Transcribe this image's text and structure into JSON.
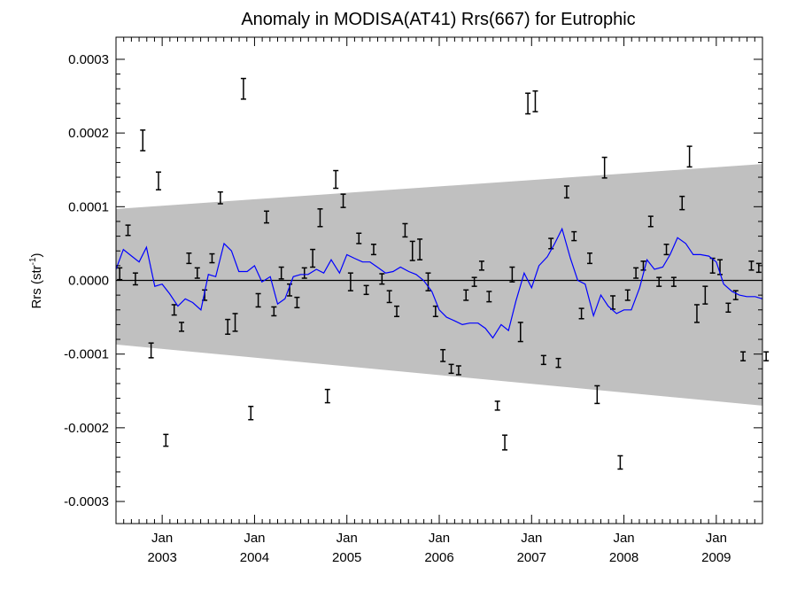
{
  "chart_data": {
    "type": "line",
    "title": "Anomaly in MODISA(AT41) Rrs(667) for Eutrophic",
    "ylabel_main": "Rrs (str",
    "ylabel_sup": "-1",
    "ylabel_close": ")",
    "xlabel": "",
    "xlim": [
      2002.5,
      2009.5
    ],
    "ylim": [
      -0.00033,
      0.00033
    ],
    "y_ticks": [
      -0.0003,
      -0.0002,
      -0.0001,
      0.0,
      0.0001,
      0.0002,
      0.0003
    ],
    "y_tick_labels": [
      "-0.0003",
      "-0.0002",
      "-0.0001",
      "0.0000",
      "0.0001",
      "0.0002",
      "0.0003"
    ],
    "x_ticks": [
      {
        "value": 2003.0,
        "month": "Jan",
        "year": "2003"
      },
      {
        "value": 2004.0,
        "month": "Jan",
        "year": "2004"
      },
      {
        "value": 2005.0,
        "month": "Jan",
        "year": "2005"
      },
      {
        "value": 2006.0,
        "month": "Jan",
        "year": "2006"
      },
      {
        "value": 2007.0,
        "month": "Jan",
        "year": "2007"
      },
      {
        "value": 2008.0,
        "month": "Jan",
        "year": "2008"
      },
      {
        "value": 2009.0,
        "month": "Jan",
        "year": "2009"
      }
    ],
    "zero_line": true,
    "colors": {
      "band": "#c0c0c0",
      "line": "#0000ff",
      "points": "#000000",
      "axis": "#000000"
    },
    "band": {
      "start": {
        "x": 2002.5,
        "upper": 9.7e-05,
        "lower": -8.7e-05
      },
      "end": {
        "x": 2009.5,
        "upper": 0.000158,
        "lower": -0.00017
      }
    },
    "series": [
      {
        "kind": "errorbar",
        "x": [
          2002.54,
          2002.63,
          2002.71,
          2002.79,
          2002.88,
          2002.96,
          2003.04,
          2003.13,
          2003.21,
          2003.29,
          2003.38,
          2003.46,
          2003.54,
          2003.63,
          2003.71,
          2003.79,
          2003.88,
          2003.96,
          2004.04,
          2004.13,
          2004.21,
          2004.29,
          2004.38,
          2004.46,
          2004.54,
          2004.63,
          2004.71,
          2004.79,
          2004.88,
          2004.96,
          2005.04,
          2005.13,
          2005.21,
          2005.29,
          2005.38,
          2005.46,
          2005.54,
          2005.63,
          2005.71,
          2005.79,
          2005.88,
          2005.96,
          2006.04,
          2006.13,
          2006.21,
          2006.29,
          2006.38,
          2006.46,
          2006.54,
          2006.63,
          2006.71,
          2006.79,
          2006.88,
          2006.96,
          2007.04,
          2007.13,
          2007.21,
          2007.29,
          2007.38,
          2007.46,
          2007.54,
          2007.63,
          2007.71,
          2007.79,
          2007.88,
          2007.96,
          2008.04,
          2008.13,
          2008.21,
          2008.29,
          2008.38,
          2008.46,
          2008.54,
          2008.63,
          2008.71,
          2008.79,
          2008.88,
          2008.96,
          2009.04,
          2009.13,
          2009.21,
          2009.29,
          2009.38,
          2009.46,
          2009.54
        ],
        "y": [
          9e-06,
          6.8e-05,
          2e-06,
          0.00019,
          -9.5e-05,
          0.000135,
          -0.000217,
          -4e-05,
          -6.3e-05,
          3e-05,
          1e-05,
          -2e-05,
          3e-05,
          0.000112,
          -6.3e-05,
          -5.7e-05,
          0.00026,
          -0.00018,
          -2.7e-05,
          8.6e-05,
          -4.2e-05,
          1e-05,
          -1.3e-05,
          -3e-05,
          1e-05,
          3e-05,
          8.5e-05,
          -0.000157,
          0.000137,
          0.000108,
          -2e-06,
          5.7e-05,
          -1.3e-05,
          4.2e-05,
          2e-06,
          -2.2e-05,
          -4.2e-05,
          6.8e-05,
          4e-05,
          4.2e-05,
          -2e-06,
          -4.2e-05,
          -0.000102,
          -0.00012,
          -0.000122,
          -2e-05,
          -2e-06,
          2e-05,
          -2.2e-05,
          -0.00017,
          -0.00022,
          8e-06,
          -7e-05,
          0.00024,
          0.000243,
          -0.000108,
          5e-05,
          -0.000112,
          0.00012,
          6e-05,
          -4.5e-05,
          3e-05,
          -0.000155,
          0.000153,
          -3e-05,
          -0.000247,
          -2e-05,
          1e-05,
          2e-05,
          8e-05,
          -2e-06,
          4.2e-05,
          -2e-06,
          0.000105,
          0.000168,
          -4.5e-05,
          -2e-05,
          2e-05,
          1.8e-05,
          -3.7e-05,
          -2e-05,
          -0.000103,
          2e-05,
          1.7e-05,
          -0.000103
        ],
        "err": [
          8e-06,
          7e-06,
          8e-06,
          1.4e-05,
          1e-05,
          1.2e-05,
          8e-06,
          7e-06,
          6e-06,
          7e-06,
          7e-06,
          7e-06,
          6e-06,
          8e-06,
          1e-05,
          1.2e-05,
          1.4e-05,
          9e-06,
          9e-06,
          8e-06,
          6e-06,
          8e-06,
          8e-06,
          7e-06,
          7e-06,
          1.2e-05,
          1.2e-05,
          9e-06,
          1.2e-05,
          9e-06,
          1.2e-05,
          7e-06,
          6e-06,
          7e-06,
          7e-06,
          8e-06,
          7e-06,
          9e-06,
          1.3e-05,
          1.4e-05,
          1.2e-05,
          7e-06,
          8e-06,
          6e-06,
          6e-06,
          7e-06,
          6e-06,
          6e-06,
          7e-06,
          6e-06,
          1e-05,
          1e-05,
          1.3e-05,
          1.4e-05,
          1.4e-05,
          6e-06,
          7e-06,
          6e-06,
          8e-06,
          6e-06,
          7e-06,
          7e-06,
          1.2e-05,
          1.4e-05,
          9e-06,
          9e-06,
          7e-06,
          7e-06,
          6e-06,
          7e-06,
          6e-06,
          7e-06,
          6e-06,
          9e-06,
          1.4e-05,
          1.2e-05,
          1.2e-05,
          1e-05,
          1e-05,
          6e-06,
          6e-06,
          6e-06,
          6e-06,
          6e-06,
          6e-06
        ]
      },
      {
        "kind": "line",
        "x": [
          2002.5,
          2002.58,
          2002.67,
          2002.75,
          2002.83,
          2002.92,
          2003.0,
          2003.08,
          2003.17,
          2003.25,
          2003.33,
          2003.42,
          2003.5,
          2003.58,
          2003.67,
          2003.75,
          2003.83,
          2003.92,
          2004.0,
          2004.08,
          2004.17,
          2004.25,
          2004.33,
          2004.42,
          2004.5,
          2004.58,
          2004.67,
          2004.75,
          2004.83,
          2004.92,
          2005.0,
          2005.08,
          2005.17,
          2005.25,
          2005.33,
          2005.42,
          2005.5,
          2005.58,
          2005.67,
          2005.75,
          2005.83,
          2005.92,
          2006.0,
          2006.08,
          2006.17,
          2006.25,
          2006.33,
          2006.42,
          2006.5,
          2006.58,
          2006.67,
          2006.75,
          2006.83,
          2006.92,
          2007.0,
          2007.08,
          2007.17,
          2007.25,
          2007.33,
          2007.42,
          2007.5,
          2007.58,
          2007.67,
          2007.75,
          2007.83,
          2007.92,
          2008.0,
          2008.08,
          2008.17,
          2008.25,
          2008.33,
          2008.42,
          2008.5,
          2008.58,
          2008.67,
          2008.75,
          2008.83,
          2008.92,
          2009.0,
          2009.08,
          2009.17,
          2009.25,
          2009.33,
          2009.42,
          2009.5
        ],
        "y": [
          1.5e-05,
          4.2e-05,
          3.3e-05,
          2.5e-05,
          4.5e-05,
          -8e-06,
          -5e-06,
          -1.8e-05,
          -3.5e-05,
          -2.5e-05,
          -3e-05,
          -4e-05,
          8e-06,
          5e-06,
          5e-05,
          4e-05,
          1.2e-05,
          1.2e-05,
          2e-05,
          -2e-06,
          5e-06,
          -3.2e-05,
          -2.5e-05,
          5e-06,
          8e-06,
          8e-06,
          1.5e-05,
          1e-05,
          2.8e-05,
          1e-05,
          3.5e-05,
          3e-05,
          2.5e-05,
          2.5e-05,
          1.8e-05,
          1e-05,
          1.2e-05,
          1.8e-05,
          1.2e-05,
          8e-06,
          0.0,
          -1.5e-05,
          -4e-05,
          -5e-05,
          -5.5e-05,
          -6e-05,
          -5.8e-05,
          -5.8e-05,
          -6.5e-05,
          -7.8e-05,
          -6e-05,
          -6.8e-05,
          -2.8e-05,
          1e-05,
          -1e-05,
          2e-05,
          3.2e-05,
          5e-05,
          7e-05,
          3e-05,
          0.0,
          -5e-06,
          -4.8e-05,
          -2e-05,
          -3.5e-05,
          -4.5e-05,
          -4e-05,
          -4e-05,
          -1e-05,
          2.8e-05,
          1.5e-05,
          1.8e-05,
          3.5e-05,
          5.8e-05,
          5e-05,
          3.5e-05,
          3.5e-05,
          3.3e-05,
          2.5e-05,
          -5e-06,
          -1.5e-05,
          -2e-05,
          -2.2e-05,
          -2.2e-05,
          -2.5e-05
        ]
      }
    ]
  }
}
